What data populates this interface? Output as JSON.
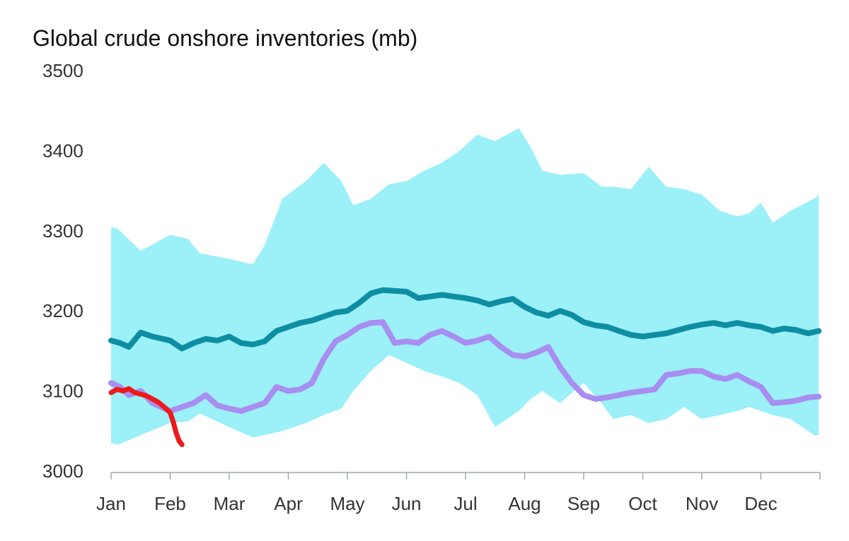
{
  "chart_data": {
    "type": "area",
    "title": "Global crude onshore inventories (mb)",
    "xlabel": "",
    "ylabel": "",
    "ylim": [
      3000,
      3500
    ],
    "xlim": [
      0,
      12
    ],
    "yticks": [
      3000,
      3100,
      3200,
      3300,
      3400,
      3500
    ],
    "months": [
      "Jan",
      "Feb",
      "Mar",
      "Apr",
      "May",
      "Jun",
      "Jul",
      "Aug",
      "Sep",
      "Oct",
      "Nov",
      "Dec"
    ],
    "grid": false,
    "legend": "none",
    "colors": {
      "range": "#9cf0f8",
      "average": "#0e8ea2",
      "prior_year": "#a78ef0",
      "current": "#ee1a1a",
      "axis": "#9aa7b0"
    },
    "band": {
      "x": [
        0,
        0.12,
        0.5,
        1.0,
        1.3,
        1.5,
        2.0,
        2.4,
        2.6,
        2.9,
        3.3,
        3.6,
        3.9,
        4.1,
        4.4,
        4.7,
        5.0,
        5.3,
        5.6,
        5.9,
        6.2,
        6.5,
        6.9,
        7.1,
        7.3,
        7.6,
        8.0,
        8.3,
        8.5,
        8.8,
        9.1,
        9.4,
        9.7,
        10.0,
        10.3,
        10.6,
        10.8,
        11.0,
        11.2,
        11.5,
        11.9,
        11.98
      ],
      "upper": [
        3305,
        3302,
        3275,
        3295,
        3290,
        3272,
        3265,
        3258,
        3282,
        3340,
        3362,
        3385,
        3362,
        3332,
        3340,
        3358,
        3362,
        3375,
        3385,
        3400,
        3420,
        3412,
        3428,
        3405,
        3375,
        3370,
        3372,
        3355,
        3355,
        3352,
        3380,
        3355,
        3352,
        3345,
        3325,
        3318,
        3322,
        3335,
        3310,
        3325,
        3340,
        3345
      ],
      "lower": [
        3035,
        3033,
        3045,
        3060,
        3062,
        3072,
        3055,
        3042,
        3045,
        3050,
        3060,
        3070,
        3078,
        3100,
        3125,
        3145,
        3135,
        3125,
        3118,
        3110,
        3095,
        3055,
        3075,
        3090,
        3100,
        3085,
        3110,
        3085,
        3065,
        3070,
        3060,
        3065,
        3080,
        3065,
        3070,
        3075,
        3080,
        3075,
        3070,
        3065,
        3045,
        3045
      ]
    },
    "series": [
      {
        "x": [
          0,
          0.15,
          0.3,
          0.5,
          0.7,
          1.0,
          1.2,
          1.4,
          1.6,
          1.8,
          2.0,
          2.2,
          2.4,
          2.6,
          2.8,
          3.0,
          3.2,
          3.4,
          3.6,
          3.8,
          4.0,
          4.2,
          4.4,
          4.6,
          4.8,
          5.0,
          5.2,
          5.4,
          5.6,
          5.8,
          6.0,
          6.2,
          6.4,
          6.6,
          6.8,
          7.0,
          7.2,
          7.4,
          7.6,
          7.8,
          8.0,
          8.2,
          8.4,
          8.6,
          8.8,
          9.0,
          9.2,
          9.4,
          9.6,
          9.8,
          10.0,
          10.2,
          10.4,
          10.6,
          10.8,
          11.0,
          11.2,
          11.4,
          11.6,
          11.8,
          11.98
        ],
        "values": [
          3163,
          3160,
          3155,
          3173,
          3168,
          3163,
          3153,
          3160,
          3165,
          3163,
          3168,
          3160,
          3158,
          3162,
          3175,
          3180,
          3185,
          3188,
          3193,
          3198,
          3200,
          3210,
          3222,
          3226,
          3225,
          3224,
          3216,
          3218,
          3220,
          3218,
          3216,
          3213,
          3208,
          3212,
          3215,
          3205,
          3198,
          3194,
          3200,
          3195,
          3186,
          3182,
          3180,
          3175,
          3170,
          3168,
          3170,
          3172,
          3176,
          3180,
          3183,
          3185,
          3182,
          3185,
          3182,
          3180,
          3175,
          3178,
          3176,
          3172,
          3175
        ]
      },
      {
        "x": [
          0,
          0.15,
          0.3,
          0.5,
          0.7,
          1.0,
          1.2,
          1.4,
          1.6,
          1.8,
          2.0,
          2.2,
          2.4,
          2.6,
          2.8,
          3.0,
          3.2,
          3.4,
          3.6,
          3.8,
          4.0,
          4.2,
          4.4,
          4.6,
          4.8,
          5.0,
          5.2,
          5.4,
          5.6,
          5.8,
          6.0,
          6.2,
          6.4,
          6.6,
          6.8,
          7.0,
          7.2,
          7.4,
          7.6,
          7.8,
          8.0,
          8.2,
          8.4,
          8.6,
          8.8,
          9.0,
          9.2,
          9.4,
          9.6,
          9.8,
          10.0,
          10.2,
          10.4,
          10.6,
          10.8,
          11.0,
          11.2,
          11.4,
          11.6,
          11.8,
          11.98
        ],
        "values": [
          3110,
          3105,
          3095,
          3100,
          3085,
          3075,
          3080,
          3085,
          3095,
          3082,
          3078,
          3075,
          3080,
          3085,
          3105,
          3100,
          3102,
          3110,
          3140,
          3162,
          3170,
          3180,
          3185,
          3186,
          3160,
          3162,
          3160,
          3170,
          3175,
          3168,
          3160,
          3163,
          3168,
          3155,
          3145,
          3143,
          3148,
          3155,
          3130,
          3110,
          3095,
          3090,
          3092,
          3095,
          3098,
          3100,
          3102,
          3120,
          3122,
          3125,
          3125,
          3118,
          3115,
          3120,
          3112,
          3105,
          3085,
          3086,
          3088,
          3092,
          3093
        ]
      },
      {
        "x": [
          0,
          0.1,
          0.2,
          0.3,
          0.4,
          0.5,
          0.6,
          0.7,
          0.8,
          0.9,
          1.0,
          1.05,
          1.1,
          1.15,
          1.2
        ],
        "values": [
          3098,
          3102,
          3100,
          3103,
          3098,
          3096,
          3094,
          3090,
          3086,
          3080,
          3073,
          3062,
          3048,
          3038,
          3033
        ]
      }
    ]
  }
}
